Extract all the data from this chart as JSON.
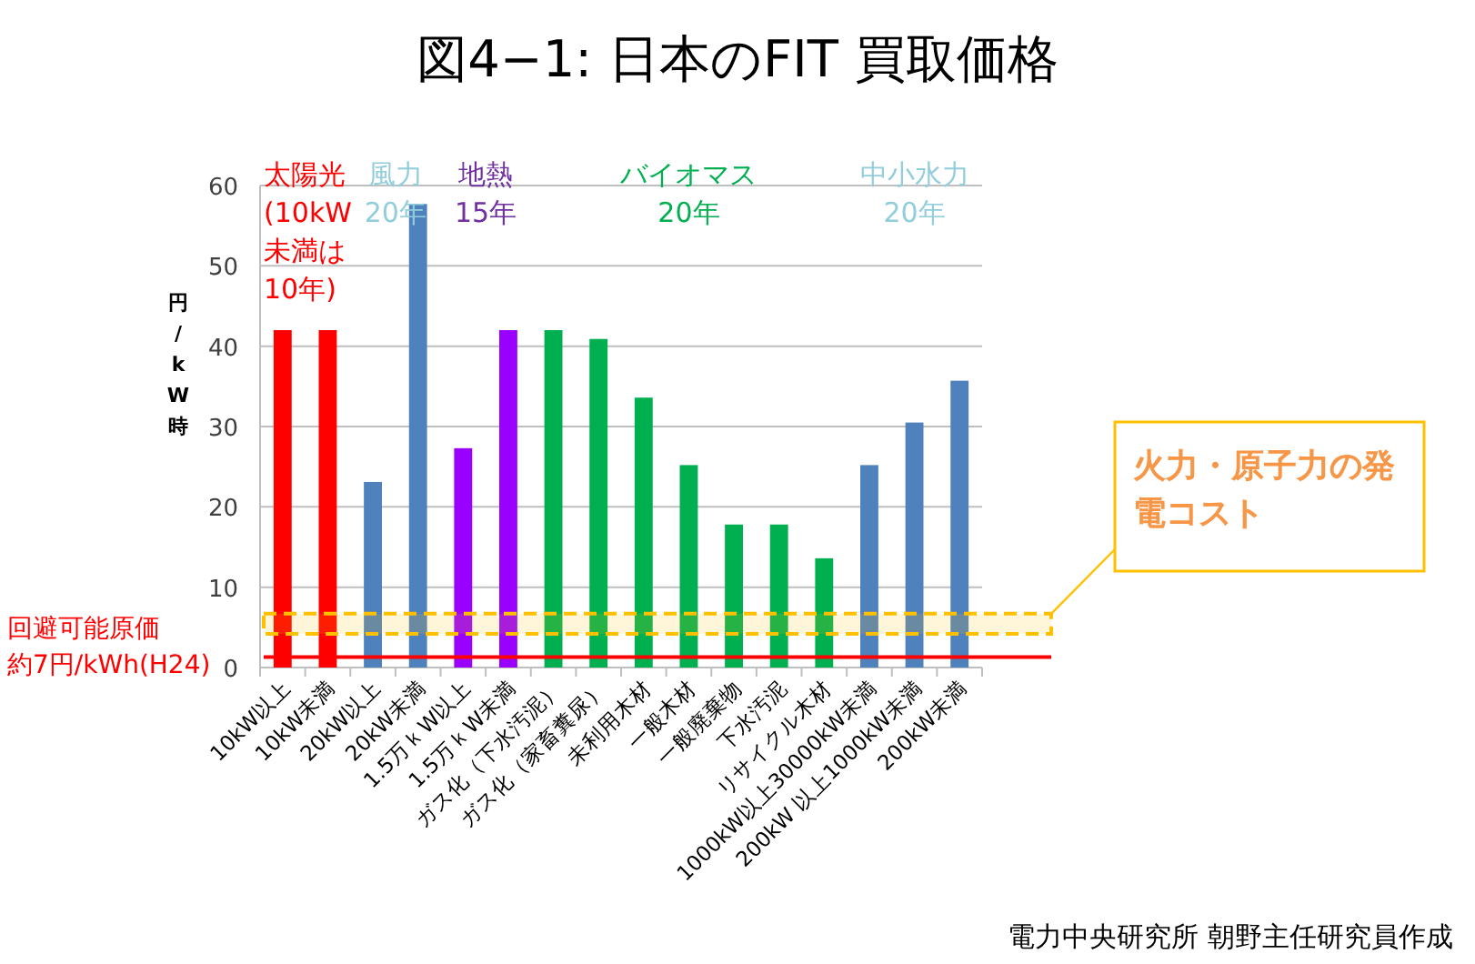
{
  "chart_data": {
    "type": "bar",
    "title": "図4−1: 日本のFIT 買取価格",
    "ylabel": "円/kW時",
    "categories": [
      "10kW以上",
      "10kW未満",
      "20kW以上",
      "20kW未満",
      "1.5万ｋW以上",
      "1.5万ｋW未満",
      "ガス化（下水汚泥）",
      "ガス化（家畜糞尿）",
      "未利用木材",
      "一般木材",
      "一般廃棄物",
      "下水汚泥",
      "リサイクル木材",
      "1000kW以上30000kW未満",
      "200kW 以上1000kW未満",
      "200kW未満"
    ],
    "values": [
      42,
      42,
      23.1,
      57.7,
      27.3,
      42,
      42,
      40.9,
      33.6,
      25.2,
      17.8,
      17.8,
      13.6,
      25.2,
      30.5,
      35.7
    ],
    "colors": [
      "#ff0000",
      "#ff0000",
      "#4f81bd",
      "#4f81bd",
      "#9900ff",
      "#9900ff",
      "#00b050",
      "#00b050",
      "#00b050",
      "#00b050",
      "#00b050",
      "#00b050",
      "#00b050",
      "#4f81bd",
      "#4f81bd",
      "#4f81bd"
    ],
    "ylim": [
      0,
      60
    ],
    "yticks": [
      0,
      10,
      20,
      30,
      40,
      50,
      60
    ],
    "grid": "y",
    "ref_lines": [
      {
        "axis": "y",
        "value": 1.3,
        "label": "回避可能原価約7円/kWh(H24)",
        "color": "#ff0000"
      }
    ],
    "bands": [
      {
        "axis": "y",
        "from": 4.2,
        "to": 6.7,
        "label": "火力・原子力の発電コスト",
        "color": "#ffc000"
      }
    ],
    "annotations": [
      "太陽光\n(10kW\n未満は\n10年)",
      "風力\n20年",
      "地熱\n15年",
      "バイオマス\n20年",
      "中小水力\n20年",
      "電力中央研究所 朝野主任研究員作成"
    ]
  }
}
